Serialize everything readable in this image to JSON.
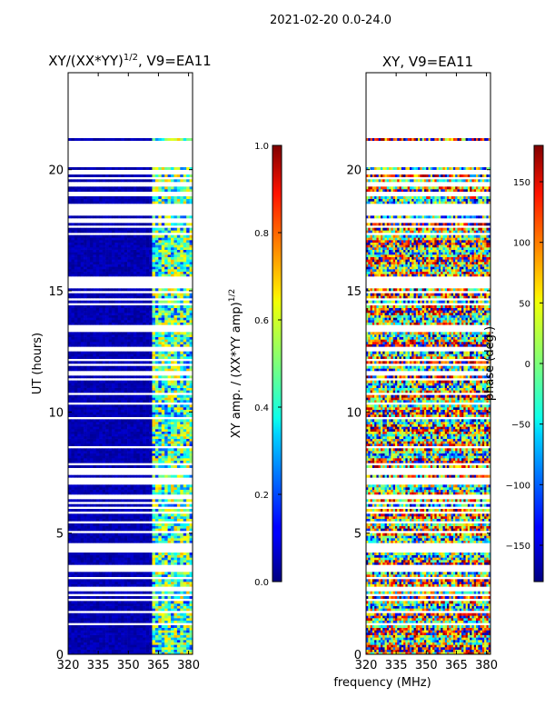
{
  "figure": {
    "suptitle": "2021-02-20 0.0-24.0",
    "shared_xlabel": "frequency (MHz)"
  },
  "chart_data": [
    {
      "type": "heatmap",
      "title_prefix": "XY/(XX*YY)",
      "title_sup": "1/2",
      "title_suffix": ", V9=EA11",
      "ylabel": "UT (hours)",
      "xlim": [
        320,
        382
      ],
      "ylim": [
        0,
        24
      ],
      "xticks": [
        320,
        335,
        350,
        365,
        380
      ],
      "yticks": [
        0,
        5,
        10,
        15,
        20
      ],
      "colorbar": {
        "label_main": "XY amp. / (XX*YY amp)",
        "label_sup": "1/2",
        "range": [
          0.0,
          1.0
        ],
        "ticks": [
          "0.0",
          "0.2",
          "0.4",
          "0.6",
          "0.8",
          "1.0"
        ],
        "tick_values": [
          0.0,
          0.2,
          0.4,
          0.6,
          0.8,
          1.0
        ]
      },
      "colormap": "jet",
      "description_of_data": "Low amplitude (~0.05) below 362 MHz; channels 362-382 MHz show 0.3-0.7 with gaps (white rows)"
    },
    {
      "type": "heatmap",
      "title": "XY, V9=EA11",
      "xlim": [
        320,
        382
      ],
      "ylim": [
        0,
        24
      ],
      "xticks": [
        320,
        335,
        350,
        365,
        380
      ],
      "yticks": [
        0,
        5,
        10,
        15,
        20
      ],
      "colorbar": {
        "label": "phase (deg.)",
        "range": [
          -180,
          180
        ],
        "ticks": [
          "−150",
          "−100",
          "−50",
          "0",
          "50",
          "100",
          "150"
        ],
        "tick_values": [
          -150,
          -100,
          -50,
          0,
          50,
          100,
          150
        ]
      },
      "colormap": "jet",
      "description_of_data": "Phase values spanning -180 to 180 deg with noisy structure and gaps"
    }
  ]
}
